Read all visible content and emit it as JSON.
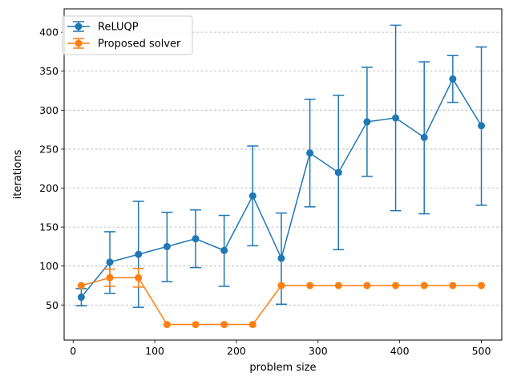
{
  "chart_data": {
    "type": "line",
    "xlabel": "problem size",
    "ylabel": "iterations",
    "xlim": [
      -11,
      525
    ],
    "ylim": [
      5,
      430
    ],
    "xticks": [
      0,
      100,
      200,
      300,
      400,
      500
    ],
    "yticks": [
      50,
      100,
      150,
      200,
      250,
      300,
      350,
      400
    ],
    "grid": "y-dashed",
    "legend_position": "top-left",
    "x": [
      10,
      45,
      80,
      115,
      150,
      185,
      220,
      255,
      290,
      325,
      360,
      395,
      430,
      465,
      500
    ],
    "series": [
      {
        "name": "ReLUQP",
        "color": "#1f77b4",
        "values": [
          60,
          105,
          115,
          125,
          135,
          120,
          190,
          110,
          245,
          220,
          285,
          290,
          265,
          340,
          280
        ],
        "error_low": [
          49,
          65,
          47,
          80,
          98,
          74,
          126,
          51,
          176,
          121,
          215,
          171,
          167,
          310,
          178
        ],
        "error_high": [
          71,
          144,
          183,
          169,
          172,
          165,
          254,
          168,
          314,
          319,
          355,
          409,
          362,
          370,
          381
        ]
      },
      {
        "name": "Proposed solver",
        "color": "#ff7f0e",
        "values": [
          75,
          85,
          85,
          25,
          25,
          25,
          25,
          75,
          75,
          75,
          75,
          75,
          75,
          75,
          75
        ],
        "error_low": [
          75,
          74,
          73,
          25,
          25,
          25,
          25,
          75,
          75,
          75,
          75,
          75,
          75,
          75,
          75
        ],
        "error_high": [
          75,
          96,
          97,
          25,
          25,
          25,
          25,
          75,
          75,
          75,
          75,
          75,
          75,
          75,
          75
        ]
      }
    ]
  }
}
